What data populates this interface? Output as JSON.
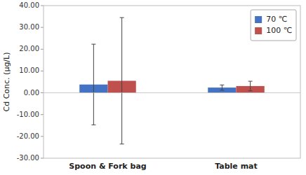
{
  "chart_data": {
    "type": "bar",
    "categories": [
      "Spoon & Fork bag",
      "Table mat"
    ],
    "series": [
      {
        "name": "70 ℃",
        "color": "#4472C4",
        "values": [
          3.8,
          2.4
        ],
        "errors": [
          18.5,
          1.2
        ]
      },
      {
        "name": "100 ℃",
        "color": "#C0504D",
        "values": [
          5.5,
          3.1
        ],
        "errors": [
          29.0,
          2.2
        ]
      }
    ],
    "ylabel": "Cd Conc. (μg/L)",
    "ylim": [
      -30,
      40
    ],
    "yticks": [
      {
        "value": -30,
        "label": "-30.00"
      },
      {
        "value": -20,
        "label": "-20.00"
      },
      {
        "value": -10,
        "label": "-10.00"
      },
      {
        "value": 0,
        "label": "0.00"
      },
      {
        "value": 10,
        "label": "10.00"
      },
      {
        "value": 20,
        "label": "20.00"
      },
      {
        "value": 30,
        "label": "30.00"
      },
      {
        "value": 40,
        "label": "40.00"
      }
    ],
    "grid": false,
    "legend": "upper right"
  }
}
